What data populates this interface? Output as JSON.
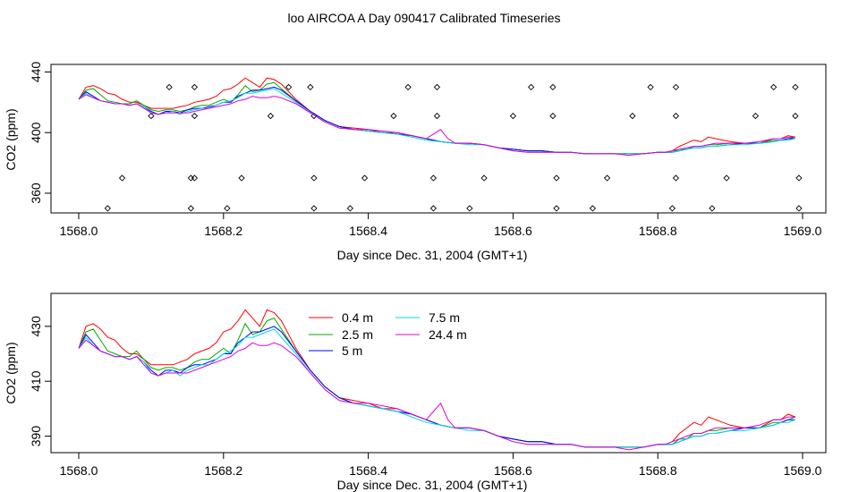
{
  "title": "loo AIRCOA A  Day 090417  Calibrated Timeseries",
  "chart_data": [
    {
      "type": "line",
      "xlabel": "Day since Dec. 31, 2004 (GMT+1)",
      "ylabel": "CO2 (ppm)",
      "xlim": [
        1568.0,
        1569.0
      ],
      "ylim": [
        347,
        445
      ],
      "xticks": [
        "1568.0",
        "1568.2",
        "1568.4",
        "1568.6",
        "1568.8",
        "1569.0"
      ],
      "yticks": [
        "360",
        "400",
        "440"
      ],
      "series": [
        {
          "name": "0.4 m",
          "color": "#ff0000",
          "x": [
            1568.0,
            1568.01,
            1568.02,
            1568.03,
            1568.04,
            1568.05,
            1568.06,
            1568.07,
            1568.08,
            1568.09,
            1568.1,
            1568.11,
            1568.12,
            1568.13,
            1568.14,
            1568.15,
            1568.16,
            1568.17,
            1568.18,
            1568.19,
            1568.2,
            1568.21,
            1568.22,
            1568.23,
            1568.24,
            1568.25,
            1568.26,
            1568.27,
            1568.28,
            1568.3,
            1568.32,
            1568.34,
            1568.36,
            1568.38,
            1568.4,
            1568.42,
            1568.44,
            1568.46,
            1568.48,
            1568.5,
            1568.52,
            1568.54,
            1568.56,
            1568.58,
            1568.6,
            1568.62,
            1568.64,
            1568.66,
            1568.68,
            1568.7,
            1568.72,
            1568.74,
            1568.76,
            1568.78,
            1568.8,
            1568.81,
            1568.82,
            1568.83,
            1568.84,
            1568.85,
            1568.86,
            1568.87,
            1568.88,
            1568.9,
            1568.92,
            1568.94,
            1568.96,
            1568.97,
            1568.98,
            1568.99
          ],
          "y": [
            422,
            430,
            431,
            429,
            426,
            425,
            422,
            420,
            420,
            418,
            416,
            416,
            416,
            416,
            417,
            418,
            420,
            421,
            422,
            424,
            428,
            429,
            432,
            436,
            433,
            430,
            436,
            435,
            432,
            422,
            414,
            408,
            404,
            403,
            402,
            400,
            400,
            398,
            396,
            394,
            393,
            393,
            392,
            390,
            389,
            388,
            388,
            387,
            387,
            386,
            386,
            386,
            386,
            386,
            387,
            387,
            388,
            391,
            393,
            395,
            394,
            397,
            396,
            394,
            393,
            393,
            396,
            396,
            398,
            397
          ]
        },
        {
          "name": "2.5 m",
          "color": "#00aa00",
          "x": [
            1568.0,
            1568.01,
            1568.02,
            1568.03,
            1568.04,
            1568.05,
            1568.06,
            1568.07,
            1568.08,
            1568.09,
            1568.1,
            1568.11,
            1568.12,
            1568.13,
            1568.14,
            1568.15,
            1568.16,
            1568.17,
            1568.18,
            1568.19,
            1568.2,
            1568.21,
            1568.22,
            1568.23,
            1568.24,
            1568.25,
            1568.26,
            1568.27,
            1568.28,
            1568.3,
            1568.32,
            1568.34,
            1568.36,
            1568.38,
            1568.4,
            1568.42,
            1568.44,
            1568.46,
            1568.48,
            1568.5,
            1568.52,
            1568.54,
            1568.56,
            1568.58,
            1568.6,
            1568.62,
            1568.64,
            1568.66,
            1568.68,
            1568.7,
            1568.72,
            1568.74,
            1568.76,
            1568.78,
            1568.8,
            1568.81,
            1568.82,
            1568.83,
            1568.84,
            1568.85,
            1568.86,
            1568.87,
            1568.88,
            1568.9,
            1568.92,
            1568.94,
            1568.96,
            1568.97,
            1568.98,
            1568.99
          ],
          "y": [
            422,
            428,
            429,
            425,
            421,
            420,
            419,
            419,
            421,
            418,
            415,
            414,
            415,
            415,
            414,
            415,
            417,
            418,
            418,
            420,
            422,
            420,
            425,
            431,
            427,
            428,
            432,
            433,
            429,
            421,
            414,
            408,
            404,
            402,
            401,
            400,
            399,
            398,
            396,
            394,
            393,
            393,
            392,
            390,
            389,
            388,
            388,
            387,
            387,
            386,
            386,
            386,
            386,
            386,
            387,
            387,
            387,
            389,
            389,
            391,
            391,
            392,
            392,
            393,
            393,
            393,
            395,
            395,
            396,
            397
          ]
        },
        {
          "name": "5 m",
          "color": "#0000ff",
          "x": [
            1568.0,
            1568.01,
            1568.02,
            1568.03,
            1568.04,
            1568.05,
            1568.06,
            1568.07,
            1568.08,
            1568.09,
            1568.1,
            1568.11,
            1568.12,
            1568.13,
            1568.14,
            1568.15,
            1568.16,
            1568.17,
            1568.18,
            1568.19,
            1568.2,
            1568.21,
            1568.22,
            1568.23,
            1568.24,
            1568.25,
            1568.26,
            1568.27,
            1568.28,
            1568.3,
            1568.32,
            1568.34,
            1568.36,
            1568.38,
            1568.4,
            1568.42,
            1568.44,
            1568.46,
            1568.48,
            1568.5,
            1568.52,
            1568.54,
            1568.56,
            1568.58,
            1568.6,
            1568.62,
            1568.64,
            1568.66,
            1568.68,
            1568.7,
            1568.72,
            1568.74,
            1568.76,
            1568.78,
            1568.8,
            1568.81,
            1568.82,
            1568.83,
            1568.84,
            1568.85,
            1568.86,
            1568.87,
            1568.88,
            1568.9,
            1568.92,
            1568.94,
            1568.96,
            1568.97,
            1568.98,
            1568.99
          ],
          "y": [
            422,
            427,
            424,
            421,
            420,
            419,
            419,
            418,
            419,
            417,
            414,
            412,
            414,
            414,
            413,
            415,
            416,
            416,
            417,
            418,
            420,
            420,
            424,
            426,
            428,
            428,
            429,
            430,
            428,
            421,
            414,
            408,
            404,
            402,
            401,
            400,
            399,
            398,
            396,
            394,
            393,
            393,
            392,
            390,
            389,
            388,
            388,
            387,
            387,
            386,
            386,
            386,
            386,
            386,
            387,
            387,
            387,
            388,
            389,
            390,
            390,
            391,
            391,
            392,
            393,
            393,
            394,
            395,
            396,
            396
          ]
        },
        {
          "name": "7.5 m",
          "color": "#00dddd",
          "x": [
            1568.0,
            1568.01,
            1568.02,
            1568.03,
            1568.04,
            1568.05,
            1568.06,
            1568.07,
            1568.08,
            1568.09,
            1568.1,
            1568.11,
            1568.12,
            1568.13,
            1568.14,
            1568.15,
            1568.16,
            1568.17,
            1568.18,
            1568.19,
            1568.2,
            1568.21,
            1568.22,
            1568.23,
            1568.24,
            1568.25,
            1568.26,
            1568.27,
            1568.28,
            1568.3,
            1568.32,
            1568.34,
            1568.36,
            1568.38,
            1568.4,
            1568.42,
            1568.44,
            1568.46,
            1568.48,
            1568.5,
            1568.52,
            1568.54,
            1568.56,
            1568.58,
            1568.6,
            1568.62,
            1568.64,
            1568.66,
            1568.68,
            1568.7,
            1568.72,
            1568.74,
            1568.76,
            1568.78,
            1568.8,
            1568.81,
            1568.82,
            1568.83,
            1568.84,
            1568.85,
            1568.86,
            1568.87,
            1568.88,
            1568.9,
            1568.92,
            1568.94,
            1568.96,
            1568.97,
            1568.98,
            1568.99
          ],
          "y": [
            422,
            426,
            423,
            421,
            420,
            419,
            419,
            418,
            419,
            417,
            413,
            412,
            413,
            414,
            412,
            414,
            415,
            416,
            416,
            418,
            420,
            421,
            423,
            426,
            426,
            427,
            428,
            429,
            426,
            420,
            413,
            407,
            403,
            402,
            401,
            400,
            399,
            397,
            395,
            394,
            393,
            392,
            392,
            390,
            388,
            387,
            387,
            387,
            387,
            386,
            386,
            386,
            386,
            386,
            387,
            387,
            387,
            388,
            389,
            390,
            390,
            391,
            391,
            392,
            392,
            393,
            394,
            395,
            395,
            396
          ]
        },
        {
          "name": "24.4 m",
          "color": "#dd00dd",
          "x": [
            1568.0,
            1568.01,
            1568.02,
            1568.03,
            1568.04,
            1568.05,
            1568.06,
            1568.07,
            1568.08,
            1568.09,
            1568.1,
            1568.11,
            1568.12,
            1568.13,
            1568.14,
            1568.15,
            1568.16,
            1568.17,
            1568.18,
            1568.19,
            1568.2,
            1568.21,
            1568.22,
            1568.23,
            1568.24,
            1568.25,
            1568.26,
            1568.27,
            1568.28,
            1568.3,
            1568.32,
            1568.34,
            1568.36,
            1568.38,
            1568.4,
            1568.42,
            1568.44,
            1568.46,
            1568.48,
            1568.49,
            1568.5,
            1568.51,
            1568.52,
            1568.54,
            1568.56,
            1568.58,
            1568.6,
            1568.62,
            1568.64,
            1568.66,
            1568.68,
            1568.7,
            1568.72,
            1568.74,
            1568.76,
            1568.78,
            1568.8,
            1568.81,
            1568.82,
            1568.83,
            1568.84,
            1568.85,
            1568.86,
            1568.87,
            1568.88,
            1568.9,
            1568.92,
            1568.94,
            1568.96,
            1568.97,
            1568.98,
            1568.99
          ],
          "y": [
            422,
            425,
            423,
            421,
            420,
            419,
            419,
            418,
            419,
            416,
            413,
            412,
            413,
            413,
            413,
            413,
            414,
            415,
            416,
            417,
            418,
            419,
            421,
            422,
            424,
            423,
            423,
            424,
            423,
            419,
            413,
            407,
            403,
            402,
            402,
            401,
            400,
            398,
            396,
            399,
            402,
            396,
            393,
            393,
            392,
            390,
            388,
            387,
            387,
            387,
            387,
            386,
            386,
            386,
            385,
            386,
            387,
            387,
            388,
            389,
            390,
            391,
            391,
            392,
            393,
            393,
            393,
            394,
            396,
            396,
            397,
            397
          ]
        }
      ],
      "markers": {
        "x": [
          1568.04,
          1568.06,
          1568.1,
          1568.125,
          1568.155,
          1568.155,
          1568.16,
          1568.16,
          1568.16,
          1568.205,
          1568.225,
          1568.265,
          1568.29,
          1568.32,
          1568.325,
          1568.325,
          1568.325,
          1568.375,
          1568.395,
          1568.435,
          1568.455,
          1568.49,
          1568.49,
          1568.495,
          1568.495,
          1568.54,
          1568.56,
          1568.6,
          1568.625,
          1568.655,
          1568.655,
          1568.66,
          1568.66,
          1568.71,
          1568.73,
          1568.765,
          1568.79,
          1568.82,
          1568.825,
          1568.825,
          1568.825,
          1568.875,
          1568.895,
          1568.935,
          1568.96,
          1568.99,
          1568.99,
          1568.995,
          1568.995
        ],
        "y": [
          350,
          370,
          411,
          430,
          350,
          370,
          430,
          411,
          370,
          350,
          370,
          411,
          430,
          430,
          411,
          370,
          350,
          350,
          370,
          411,
          430,
          350,
          370,
          430,
          411,
          350,
          370,
          411,
          430,
          430,
          411,
          370,
          350,
          350,
          370,
          411,
          430,
          350,
          430,
          411,
          370,
          350,
          370,
          411,
          430,
          430,
          411,
          370,
          350
        ]
      }
    },
    {
      "type": "line",
      "xlabel": "Day since Dec. 31, 2004 (GMT+1)",
      "ylabel": "CO2 (ppm)",
      "xlim": [
        1568.0,
        1569.0
      ],
      "ylim": [
        384,
        442
      ],
      "xticks": [
        "1568.0",
        "1568.2",
        "1568.4",
        "1568.6",
        "1568.8",
        "1569.0"
      ],
      "yticks": [
        "390",
        "410",
        "430"
      ],
      "legend": {
        "placement": "top-center",
        "entries": [
          {
            "label": "0.4 m",
            "color": "#ff0000"
          },
          {
            "label": "2.5 m",
            "color": "#00aa00"
          },
          {
            "label": "5 m",
            "color": "#0000ff"
          },
          {
            "label": "7.5 m",
            "color": "#00dddd"
          },
          {
            "label": "24.4 m",
            "color": "#dd00dd"
          }
        ]
      },
      "same_series_as_panel": 0
    }
  ]
}
